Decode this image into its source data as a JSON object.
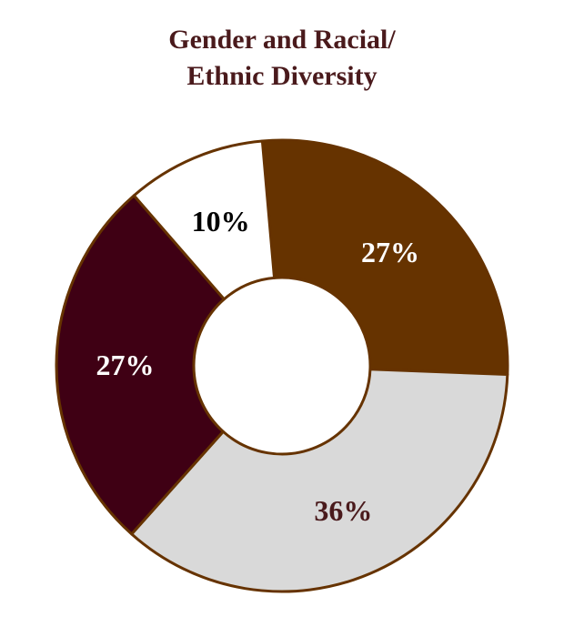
{
  "chart_data": {
    "type": "pie",
    "title": "Gender and Racial/",
    "subtitle": "Ethnic Diversity",
    "slices": [
      {
        "value": 27,
        "label": "27%",
        "color": "#663300",
        "label_color": "#ffffff"
      },
      {
        "value": 36,
        "label": "36%",
        "color": "#d9d9d9",
        "label_color": "#4a1a1c"
      },
      {
        "value": 27,
        "label": "27%",
        "color": "#3f0014",
        "label_color": "#ffffff"
      },
      {
        "value": 10,
        "label": "10%",
        "color": "#ffffff",
        "label_color": "#000000"
      }
    ],
    "border_color": "#663300",
    "title_color": "#4a1a1c",
    "legend": "none"
  }
}
